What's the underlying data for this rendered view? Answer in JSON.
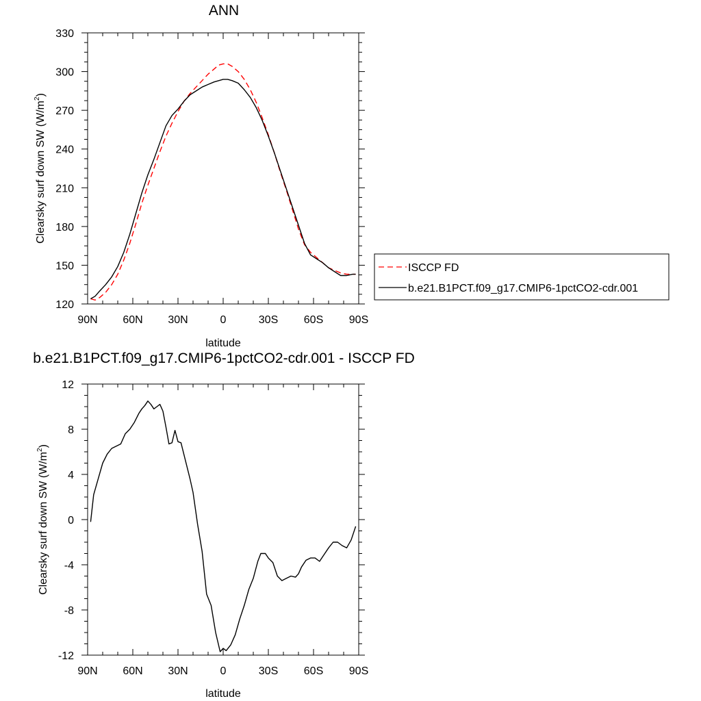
{
  "chart_data": [
    {
      "type": "line",
      "title": "ANN",
      "xlabel": "latitude",
      "ylabel": "Clearsky surf down SW (W/m",
      "ylabel_sup": "2",
      "ylabel_close": ")",
      "xlim": [
        90,
        -90
      ],
      "ylim": [
        120,
        330
      ],
      "x_ticks": [
        90,
        60,
        30,
        0,
        -30,
        -60,
        -90
      ],
      "x_tick_labels": [
        "90N",
        "60N",
        "30N",
        "0",
        "30S",
        "60S",
        "90S"
      ],
      "y_ticks": [
        120,
        150,
        180,
        210,
        240,
        270,
        300,
        330
      ],
      "y_tick_labels": [
        "120",
        "150",
        "180",
        "210",
        "240",
        "270",
        "300",
        "330"
      ],
      "legend": {
        "placement": "right",
        "entries": [
          "ISCCP FD",
          "b.e21.B1PCT.f09_g17.CMIP6-1pctCO2-cdr.001"
        ]
      },
      "series": [
        {
          "name": "ISCCP FD",
          "color": "#ff0000",
          "dash": "dashed",
          "x": [
            88,
            85,
            82,
            78,
            74,
            70,
            66,
            62,
            58,
            54,
            50,
            46,
            42,
            38,
            34,
            30,
            26,
            22,
            18,
            14,
            10,
            6,
            3,
            0,
            -3,
            -6,
            -10,
            -14,
            -18,
            -22,
            -26,
            -30,
            -34,
            -38,
            -42,
            -46,
            -50,
            -54,
            -58,
            -62,
            -66,
            -70,
            -74,
            -78,
            -82,
            -86,
            -88
          ],
          "y": [
            124,
            123,
            125,
            129,
            135,
            143,
            154,
            167,
            182,
            198,
            212,
            225,
            238,
            250,
            260,
            269,
            277,
            283,
            288,
            293,
            298,
            302,
            305,
            306,
            306,
            304,
            300,
            294,
            286,
            276,
            264,
            251,
            237,
            222,
            208,
            193,
            178,
            166,
            160,
            156,
            152,
            148,
            146,
            144,
            143,
            143,
            143
          ]
        },
        {
          "name": "b.e21.B1PCT.f09_g17.CMIP6-1pctCO2-cdr.001",
          "color": "#000000",
          "dash": "solid",
          "x": [
            88,
            85,
            82,
            78,
            74,
            70,
            66,
            62,
            58,
            54,
            50,
            46,
            42,
            38,
            34,
            30,
            26,
            22,
            18,
            14,
            10,
            6,
            3,
            0,
            -3,
            -6,
            -10,
            -14,
            -18,
            -22,
            -26,
            -30,
            -34,
            -38,
            -42,
            -46,
            -50,
            -54,
            -58,
            -62,
            -66,
            -70,
            -74,
            -78,
            -82,
            -86,
            -88
          ],
          "y": [
            124,
            126,
            130,
            135,
            141,
            149,
            160,
            174,
            190,
            206,
            220,
            232,
            245,
            258,
            266,
            271,
            277,
            282,
            285,
            288,
            290,
            292,
            293,
            294,
            294,
            293,
            291,
            286,
            280,
            272,
            262,
            250,
            237,
            223,
            209,
            195,
            181,
            167,
            158,
            155,
            152,
            148,
            145,
            142,
            142,
            143,
            143
          ]
        }
      ]
    },
    {
      "type": "line",
      "title": "b.e21.B1PCT.f09_g17.CMIP6-1pctCO2-cdr.001 - ISCCP FD",
      "xlabel": "latitude",
      "ylabel": "Clearsky surf down SW (W/m",
      "ylabel_sup": "2",
      "ylabel_close": ")",
      "xlim": [
        90,
        -90
      ],
      "ylim": [
        -12,
        12
      ],
      "x_ticks": [
        90,
        60,
        30,
        0,
        -30,
        -60,
        -90
      ],
      "x_tick_labels": [
        "90N",
        "60N",
        "30N",
        "0",
        "30S",
        "60S",
        "90S"
      ],
      "y_ticks": [
        -12,
        -8,
        -4,
        0,
        4,
        8,
        12
      ],
      "y_tick_labels": [
        "-12",
        "-8",
        "-4",
        "0",
        "4",
        "8",
        "12"
      ],
      "series": [
        {
          "color": "#000000",
          "dash": "solid",
          "x": [
            88,
            86,
            83,
            80,
            77,
            74,
            71,
            68,
            65,
            62,
            59,
            56,
            54,
            52,
            50,
            48,
            46,
            44,
            42,
            40,
            38,
            36,
            34,
            32,
            30,
            28,
            25,
            22,
            20,
            17,
            14,
            11,
            8,
            5,
            2,
            0,
            -2,
            -5,
            -8,
            -11,
            -14,
            -17,
            -20,
            -23,
            -25,
            -28,
            -30,
            -33,
            -36,
            -39,
            -42,
            -45,
            -48,
            -50,
            -52,
            -55,
            -58,
            -61,
            -64,
            -67,
            -70,
            -73,
            -76,
            -79,
            -82,
            -85,
            -88
          ],
          "y": [
            -0.2,
            2.2,
            3.6,
            5.0,
            5.8,
            6.3,
            6.5,
            6.7,
            7.6,
            8.0,
            8.6,
            9.4,
            9.8,
            10.1,
            10.5,
            10.2,
            9.8,
            10.0,
            10.2,
            9.6,
            8.2,
            6.7,
            6.8,
            7.9,
            6.9,
            6.8,
            5.2,
            3.6,
            2.4,
            -0.4,
            -2.8,
            -6.6,
            -7.6,
            -10.0,
            -11.7,
            -11.4,
            -11.6,
            -11.1,
            -10.2,
            -8.8,
            -7.6,
            -6.2,
            -5.2,
            -3.7,
            -3.0,
            -3.0,
            -3.4,
            -3.8,
            -5.0,
            -5.4,
            -5.2,
            -5.0,
            -5.1,
            -4.8,
            -4.2,
            -3.6,
            -3.4,
            -3.4,
            -3.7,
            -3.1,
            -2.5,
            -2.0,
            -2.0,
            -2.3,
            -2.5,
            -1.8,
            -0.6
          ]
        }
      ]
    }
  ]
}
